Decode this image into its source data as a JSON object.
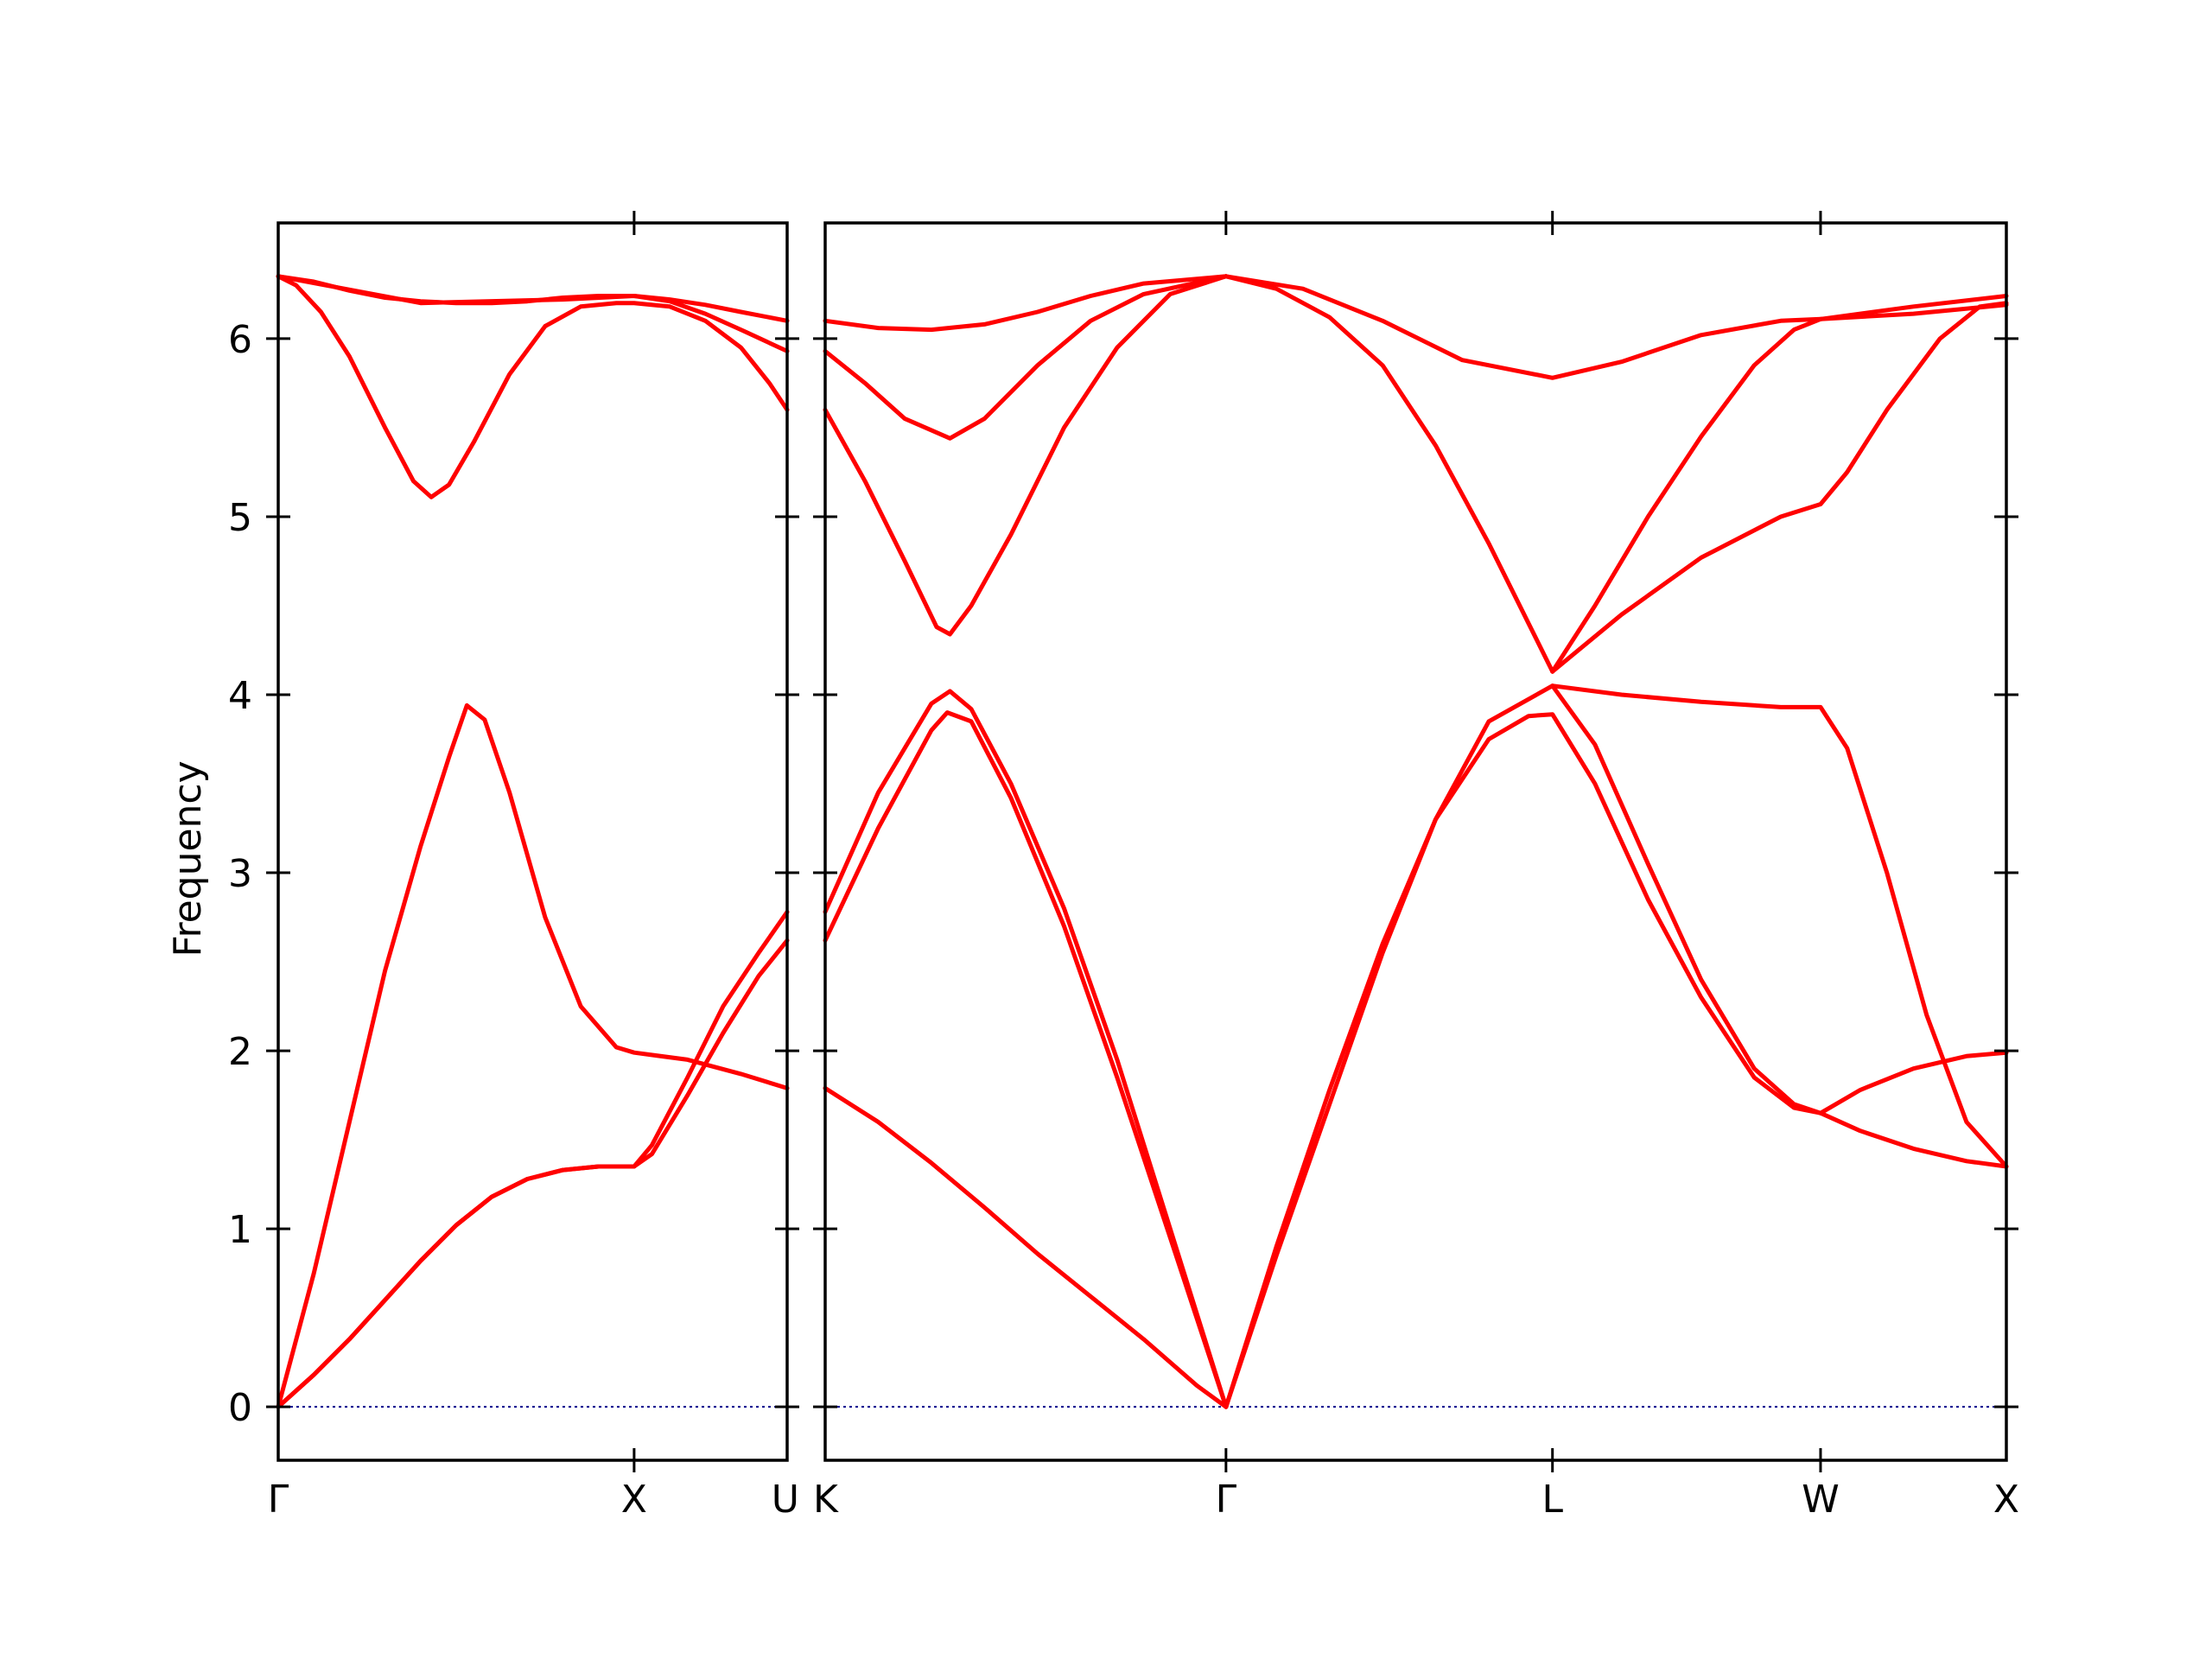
{
  "chart_data": {
    "type": "line",
    "title": "",
    "ylabel": "Frequency",
    "xlabel": "",
    "ylim": [
      -0.3,
      6.65
    ],
    "yticks": [
      0,
      1,
      2,
      3,
      4,
      5,
      6
    ],
    "grid": false,
    "legend": "none",
    "colors": {
      "bands": "#ff0000",
      "zero_line": "#00008b"
    },
    "panels": [
      {
        "xlim": [
          0,
          1.43
        ],
        "labels": [
          {
            "x": 0,
            "text": "Γ"
          },
          {
            "x": 1.0,
            "text": "X"
          },
          {
            "x": 1.43,
            "text": "U"
          }
        ],
        "series": [
          {
            "points": [
              [
                0,
                0
              ],
              [
                0.1,
                0.75
              ],
              [
                0.2,
                1.6
              ],
              [
                0.3,
                2.45
              ],
              [
                0.4,
                3.15
              ],
              [
                0.48,
                3.65
              ],
              [
                0.53,
                3.94
              ],
              [
                0.58,
                3.86
              ],
              [
                0.65,
                3.45
              ],
              [
                0.75,
                2.75
              ],
              [
                0.85,
                2.25
              ],
              [
                0.95,
                2.02
              ],
              [
                1.0,
                1.99
              ],
              [
                1.15,
                1.95
              ],
              [
                1.3,
                1.87
              ],
              [
                1.43,
                1.79
              ]
            ]
          },
          {
            "points": [
              [
                0,
                0
              ],
              [
                0.1,
                0.18
              ],
              [
                0.2,
                0.38
              ],
              [
                0.3,
                0.6
              ],
              [
                0.4,
                0.82
              ],
              [
                0.5,
                1.02
              ],
              [
                0.6,
                1.18
              ],
              [
                0.7,
                1.28
              ],
              [
                0.8,
                1.33
              ],
              [
                0.9,
                1.35
              ],
              [
                1.0,
                1.35
              ],
              [
                1.05,
                1.42
              ],
              [
                1.15,
                1.75
              ],
              [
                1.25,
                2.1
              ],
              [
                1.35,
                2.42
              ],
              [
                1.43,
                2.62
              ]
            ]
          },
          {
            "points": [
              [
                0,
                0
              ],
              [
                0.1,
                0.18
              ],
              [
                0.2,
                0.38
              ],
              [
                0.3,
                0.6
              ],
              [
                0.4,
                0.82
              ],
              [
                0.5,
                1.02
              ],
              [
                0.6,
                1.18
              ],
              [
                0.7,
                1.28
              ],
              [
                0.8,
                1.33
              ],
              [
                0.9,
                1.35
              ],
              [
                1.0,
                1.35
              ],
              [
                1.05,
                1.47
              ],
              [
                1.15,
                1.85
              ],
              [
                1.25,
                2.25
              ],
              [
                1.35,
                2.55
              ],
              [
                1.43,
                2.78
              ]
            ]
          },
          {
            "points": [
              [
                0,
                6.35
              ],
              [
                0.05,
                6.3
              ],
              [
                0.12,
                6.15
              ],
              [
                0.2,
                5.9
              ],
              [
                0.3,
                5.5
              ],
              [
                0.38,
                5.2
              ],
              [
                0.43,
                5.11
              ],
              [
                0.48,
                5.18
              ],
              [
                0.55,
                5.42
              ],
              [
                0.65,
                5.8
              ],
              [
                0.75,
                6.07
              ],
              [
                0.85,
                6.18
              ],
              [
                0.95,
                6.2
              ],
              [
                1.0,
                6.2
              ],
              [
                1.1,
                6.18
              ],
              [
                1.2,
                6.1
              ],
              [
                1.3,
                5.95
              ],
              [
                1.38,
                5.75
              ],
              [
                1.43,
                5.6
              ]
            ]
          },
          {
            "points": [
              [
                0,
                6.35
              ],
              [
                0.1,
                6.32
              ],
              [
                0.2,
                6.27
              ],
              [
                0.3,
                6.23
              ],
              [
                0.4,
                6.21
              ],
              [
                0.5,
                6.2
              ],
              [
                0.6,
                6.2
              ],
              [
                0.7,
                6.21
              ],
              [
                0.8,
                6.23
              ],
              [
                0.9,
                6.24
              ],
              [
                1.0,
                6.24
              ],
              [
                1.1,
                6.21
              ],
              [
                1.2,
                6.14
              ],
              [
                1.3,
                6.05
              ],
              [
                1.43,
                5.93
              ]
            ]
          },
          {
            "points": [
              [
                0,
                6.35
              ],
              [
                0.4,
                6.2
              ],
              [
                0.8,
                6.22
              ],
              [
                1.0,
                6.24
              ],
              [
                1.1,
                6.22
              ],
              [
                1.2,
                6.19
              ],
              [
                1.3,
                6.15
              ],
              [
                1.43,
                6.1
              ]
            ]
          }
        ]
      },
      {
        "xlim": [
          0,
          4.45
        ],
        "labels": [
          {
            "x": 0,
            "text": "K"
          },
          {
            "x": 1.51,
            "text": "Γ"
          },
          {
            "x": 2.74,
            "text": "L"
          },
          {
            "x": 3.75,
            "text": "W"
          },
          {
            "x": 4.45,
            "text": "X"
          }
        ],
        "series": [
          {
            "points": [
              [
                0,
                1.79
              ],
              [
                0.2,
                1.6
              ],
              [
                0.4,
                1.37
              ],
              [
                0.6,
                1.12
              ],
              [
                0.8,
                0.86
              ],
              [
                1.0,
                0.62
              ],
              [
                1.2,
                0.38
              ],
              [
                1.4,
                0.12
              ],
              [
                1.51,
                0
              ]
            ]
          },
          {
            "points": [
              [
                0,
                2.62
              ],
              [
                0.2,
                3.25
              ],
              [
                0.4,
                3.8
              ],
              [
                0.46,
                3.9
              ],
              [
                0.55,
                3.85
              ],
              [
                0.7,
                3.42
              ],
              [
                0.9,
                2.7
              ],
              [
                1.1,
                1.85
              ],
              [
                1.3,
                0.95
              ],
              [
                1.51,
                0
              ]
            ]
          },
          {
            "points": [
              [
                0,
                2.78
              ],
              [
                0.2,
                3.45
              ],
              [
                0.4,
                3.95
              ],
              [
                0.47,
                4.02
              ],
              [
                0.55,
                3.92
              ],
              [
                0.7,
                3.5
              ],
              [
                0.9,
                2.8
              ],
              [
                1.1,
                1.95
              ],
              [
                1.3,
                1.0
              ],
              [
                1.51,
                0
              ]
            ]
          },
          {
            "points": [
              [
                1.51,
                0
              ],
              [
                1.7,
                0.9
              ],
              [
                1.9,
                1.78
              ],
              [
                2.1,
                2.6
              ],
              [
                2.3,
                3.3
              ],
              [
                2.5,
                3.75
              ],
              [
                2.65,
                3.88
              ],
              [
                2.74,
                3.89
              ],
              [
                2.9,
                3.5
              ],
              [
                3.1,
                2.85
              ],
              [
                3.3,
                2.3
              ],
              [
                3.5,
                1.85
              ],
              [
                3.65,
                1.68
              ],
              [
                3.75,
                1.65
              ]
            ]
          },
          {
            "points": [
              [
                1.51,
                0
              ],
              [
                1.7,
                0.85
              ],
              [
                1.9,
                1.7
              ],
              [
                2.1,
                2.55
              ],
              [
                2.3,
                3.3
              ],
              [
                2.5,
                3.85
              ],
              [
                2.74,
                4.05
              ],
              [
                2.9,
                3.72
              ],
              [
                3.1,
                3.05
              ],
              [
                3.3,
                2.4
              ],
              [
                3.5,
                1.9
              ],
              [
                3.65,
                1.7
              ],
              [
                3.75,
                1.65
              ]
            ]
          },
          {
            "points": [
              [
                2.74,
                4.05
              ],
              [
                3.0,
                4.0
              ],
              [
                3.3,
                3.96
              ],
              [
                3.6,
                3.93
              ],
              [
                3.75,
                3.93
              ],
              [
                3.85,
                3.7
              ],
              [
                4.0,
                3.0
              ],
              [
                4.15,
                2.2
              ],
              [
                4.3,
                1.6
              ],
              [
                4.45,
                1.35
              ]
            ]
          },
          {
            "points": [
              [
                3.75,
                1.65
              ],
              [
                3.9,
                1.55
              ],
              [
                4.1,
                1.45
              ],
              [
                4.3,
                1.38
              ],
              [
                4.45,
                1.35
              ]
            ]
          },
          {
            "points": [
              [
                3.75,
                1.65
              ],
              [
                3.9,
                1.78
              ],
              [
                4.1,
                1.9
              ],
              [
                4.3,
                1.97
              ],
              [
                4.45,
                1.99
              ]
            ]
          },
          {
            "points": [
              [
                0,
                5.6
              ],
              [
                0.15,
                5.2
              ],
              [
                0.3,
                4.75
              ],
              [
                0.42,
                4.38
              ],
              [
                0.47,
                4.34
              ],
              [
                0.55,
                4.5
              ],
              [
                0.7,
                4.9
              ],
              [
                0.9,
                5.5
              ],
              [
                1.1,
                5.95
              ],
              [
                1.3,
                6.25
              ],
              [
                1.51,
                6.35
              ]
            ]
          },
          {
            "points": [
              [
                0,
                5.93
              ],
              [
                0.15,
                5.75
              ],
              [
                0.3,
                5.55
              ],
              [
                0.47,
                5.44
              ],
              [
                0.6,
                5.55
              ],
              [
                0.8,
                5.85
              ],
              [
                1.0,
                6.1
              ],
              [
                1.2,
                6.25
              ],
              [
                1.51,
                6.35
              ]
            ]
          },
          {
            "points": [
              [
                0,
                6.1
              ],
              [
                0.2,
                6.06
              ],
              [
                0.4,
                6.05
              ],
              [
                0.6,
                6.08
              ],
              [
                0.8,
                6.15
              ],
              [
                1.0,
                6.24
              ],
              [
                1.2,
                6.31
              ],
              [
                1.51,
                6.35
              ]
            ]
          },
          {
            "points": [
              [
                1.51,
                6.35
              ],
              [
                1.7,
                6.28
              ],
              [
                1.9,
                6.12
              ],
              [
                2.1,
                5.85
              ],
              [
                2.3,
                5.4
              ],
              [
                2.5,
                4.85
              ],
              [
                2.65,
                4.4
              ],
              [
                2.74,
                4.13
              ]
            ]
          },
          {
            "points": [
              [
                1.51,
                6.35
              ],
              [
                1.8,
                6.28
              ],
              [
                2.1,
                6.1
              ],
              [
                2.4,
                5.88
              ],
              [
                2.74,
                5.78
              ],
              [
                3.0,
                5.87
              ],
              [
                3.3,
                6.02
              ],
              [
                3.6,
                6.1
              ],
              [
                3.75,
                6.11
              ],
              [
                4.1,
                6.18
              ],
              [
                4.45,
                6.24
              ]
            ]
          },
          {
            "points": [
              [
                2.74,
                4.13
              ],
              [
                2.9,
                4.5
              ],
              [
                3.1,
                5.0
              ],
              [
                3.3,
                5.45
              ],
              [
                3.5,
                5.85
              ],
              [
                3.65,
                6.05
              ],
              [
                3.75,
                6.11
              ],
              [
                4.1,
                6.14
              ],
              [
                4.45,
                6.19
              ]
            ]
          },
          {
            "points": [
              [
                2.74,
                4.13
              ],
              [
                3.0,
                4.45
              ],
              [
                3.3,
                4.77
              ],
              [
                3.6,
                5.0
              ],
              [
                3.75,
                5.07
              ],
              [
                3.85,
                5.25
              ],
              [
                4.0,
                5.6
              ],
              [
                4.2,
                6.0
              ],
              [
                4.35,
                6.18
              ],
              [
                4.45,
                6.2
              ]
            ]
          }
        ]
      }
    ]
  }
}
